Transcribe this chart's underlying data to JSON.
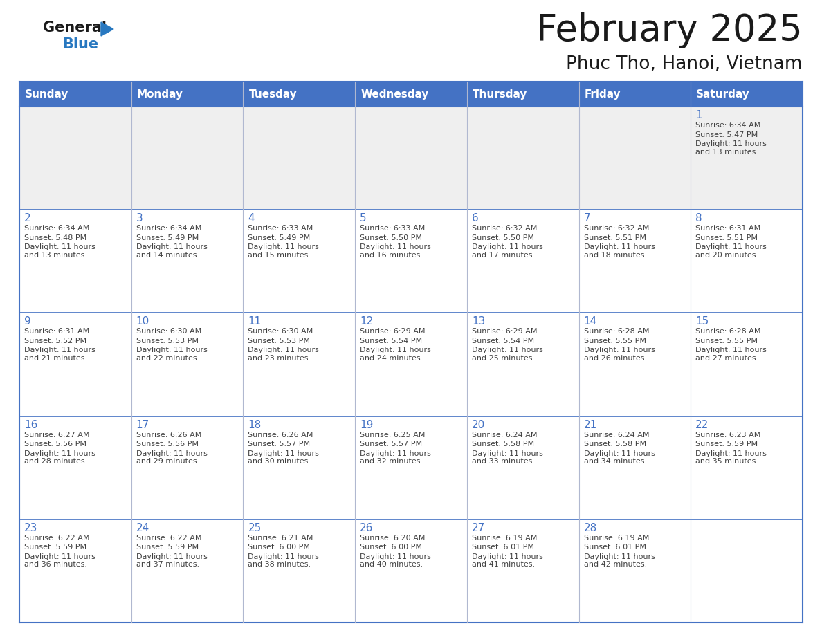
{
  "title": "February 2025",
  "subtitle": "Phuc Tho, Hanoi, Vietnam",
  "days_of_week": [
    "Sunday",
    "Monday",
    "Tuesday",
    "Wednesday",
    "Thursday",
    "Friday",
    "Saturday"
  ],
  "header_bg": "#4472C4",
  "header_text": "#FFFFFF",
  "cell_bg_light": "#EFEFEF",
  "cell_bg_white": "#FFFFFF",
  "border_color": "#4472C4",
  "line_color": "#B0B8D0",
  "title_color": "#1a1a1a",
  "subtitle_color": "#1a1a1a",
  "day_number_color": "#4472C4",
  "cell_text_color": "#404040",
  "logo_text_color": "#1a1a1a",
  "logo_blue_color": "#2878C0",
  "calendar_data": [
    [
      null,
      null,
      null,
      null,
      null,
      null,
      {
        "day": 1,
        "sunrise": "6:34 AM",
        "sunset": "5:47 PM",
        "daylight": "11 hours\nand 13 minutes."
      }
    ],
    [
      {
        "day": 2,
        "sunrise": "6:34 AM",
        "sunset": "5:48 PM",
        "daylight": "11 hours\nand 13 minutes."
      },
      {
        "day": 3,
        "sunrise": "6:34 AM",
        "sunset": "5:49 PM",
        "daylight": "11 hours\nand 14 minutes."
      },
      {
        "day": 4,
        "sunrise": "6:33 AM",
        "sunset": "5:49 PM",
        "daylight": "11 hours\nand 15 minutes."
      },
      {
        "day": 5,
        "sunrise": "6:33 AM",
        "sunset": "5:50 PM",
        "daylight": "11 hours\nand 16 minutes."
      },
      {
        "day": 6,
        "sunrise": "6:32 AM",
        "sunset": "5:50 PM",
        "daylight": "11 hours\nand 17 minutes."
      },
      {
        "day": 7,
        "sunrise": "6:32 AM",
        "sunset": "5:51 PM",
        "daylight": "11 hours\nand 18 minutes."
      },
      {
        "day": 8,
        "sunrise": "6:31 AM",
        "sunset": "5:51 PM",
        "daylight": "11 hours\nand 20 minutes."
      }
    ],
    [
      {
        "day": 9,
        "sunrise": "6:31 AM",
        "sunset": "5:52 PM",
        "daylight": "11 hours\nand 21 minutes."
      },
      {
        "day": 10,
        "sunrise": "6:30 AM",
        "sunset": "5:53 PM",
        "daylight": "11 hours\nand 22 minutes."
      },
      {
        "day": 11,
        "sunrise": "6:30 AM",
        "sunset": "5:53 PM",
        "daylight": "11 hours\nand 23 minutes."
      },
      {
        "day": 12,
        "sunrise": "6:29 AM",
        "sunset": "5:54 PM",
        "daylight": "11 hours\nand 24 minutes."
      },
      {
        "day": 13,
        "sunrise": "6:29 AM",
        "sunset": "5:54 PM",
        "daylight": "11 hours\nand 25 minutes."
      },
      {
        "day": 14,
        "sunrise": "6:28 AM",
        "sunset": "5:55 PM",
        "daylight": "11 hours\nand 26 minutes."
      },
      {
        "day": 15,
        "sunrise": "6:28 AM",
        "sunset": "5:55 PM",
        "daylight": "11 hours\nand 27 minutes."
      }
    ],
    [
      {
        "day": 16,
        "sunrise": "6:27 AM",
        "sunset": "5:56 PM",
        "daylight": "11 hours\nand 28 minutes."
      },
      {
        "day": 17,
        "sunrise": "6:26 AM",
        "sunset": "5:56 PM",
        "daylight": "11 hours\nand 29 minutes."
      },
      {
        "day": 18,
        "sunrise": "6:26 AM",
        "sunset": "5:57 PM",
        "daylight": "11 hours\nand 30 minutes."
      },
      {
        "day": 19,
        "sunrise": "6:25 AM",
        "sunset": "5:57 PM",
        "daylight": "11 hours\nand 32 minutes."
      },
      {
        "day": 20,
        "sunrise": "6:24 AM",
        "sunset": "5:58 PM",
        "daylight": "11 hours\nand 33 minutes."
      },
      {
        "day": 21,
        "sunrise": "6:24 AM",
        "sunset": "5:58 PM",
        "daylight": "11 hours\nand 34 minutes."
      },
      {
        "day": 22,
        "sunrise": "6:23 AM",
        "sunset": "5:59 PM",
        "daylight": "11 hours\nand 35 minutes."
      }
    ],
    [
      {
        "day": 23,
        "sunrise": "6:22 AM",
        "sunset": "5:59 PM",
        "daylight": "11 hours\nand 36 minutes."
      },
      {
        "day": 24,
        "sunrise": "6:22 AM",
        "sunset": "5:59 PM",
        "daylight": "11 hours\nand 37 minutes."
      },
      {
        "day": 25,
        "sunrise": "6:21 AM",
        "sunset": "6:00 PM",
        "daylight": "11 hours\nand 38 minutes."
      },
      {
        "day": 26,
        "sunrise": "6:20 AM",
        "sunset": "6:00 PM",
        "daylight": "11 hours\nand 40 minutes."
      },
      {
        "day": 27,
        "sunrise": "6:19 AM",
        "sunset": "6:01 PM",
        "daylight": "11 hours\nand 41 minutes."
      },
      {
        "day": 28,
        "sunrise": "6:19 AM",
        "sunset": "6:01 PM",
        "daylight": "11 hours\nand 42 minutes."
      },
      null
    ]
  ],
  "figsize": [
    11.88,
    9.18
  ],
  "dpi": 100
}
